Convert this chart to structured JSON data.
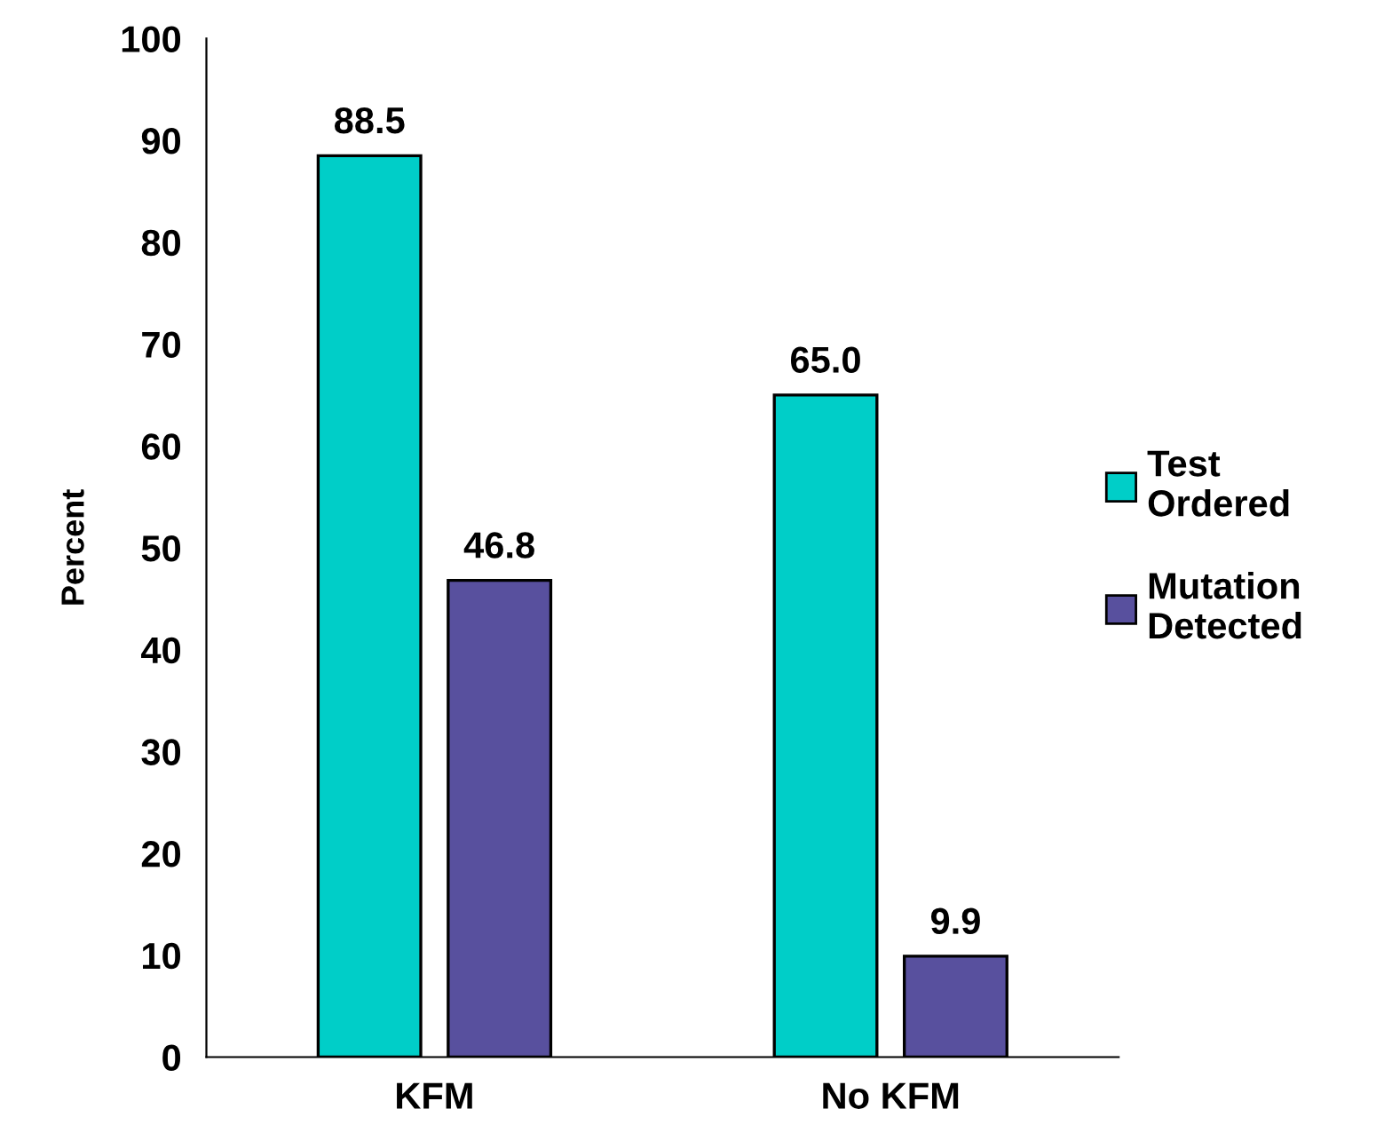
{
  "chart_data": {
    "type": "bar",
    "ylabel": "Percent",
    "categories": [
      "KFM",
      "No KFM"
    ],
    "series": [
      {
        "name": "Test\nOrdered",
        "color": "#00cec8",
        "values": [
          88.5,
          65.0
        ],
        "value_labels": [
          "88.5",
          "65.0"
        ]
      },
      {
        "name": "Mutation\nDetected",
        "color": "#58509e",
        "values": [
          46.8,
          9.9
        ],
        "value_labels": [
          "46.8",
          "9.9"
        ]
      }
    ],
    "ylim": [
      0,
      100
    ],
    "yticks": [
      0,
      10,
      20,
      30,
      40,
      50,
      60,
      70,
      80,
      90,
      100
    ],
    "grid": false,
    "legend": "right"
  }
}
